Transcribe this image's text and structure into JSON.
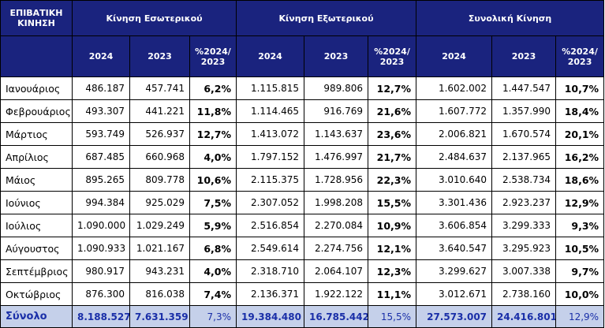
{
  "header": {
    "title": "ΕΠΙΒΑΤΙΚΗ ΚΙΝΗΣΗ",
    "groups": [
      "Κίνηση Εσωτερικού",
      "Κίνηση Εξωτερικού",
      "Συνολική Κίνηση"
    ],
    "year_2024": "2024",
    "year_2023": "2023",
    "pct_label": "%2024/ 2023"
  },
  "rows": [
    {
      "month": "Ιανουάριος",
      "dom_2024": "486.187",
      "dom_2023": "457.741",
      "dom_pct": "6,2%",
      "int_2024": "1.115.815",
      "int_2023": "989.806",
      "int_pct": "12,7%",
      "tot_2024": "1.602.002",
      "tot_2023": "1.447.547",
      "tot_pct": "10,7%"
    },
    {
      "month": "Φεβρουάριος",
      "dom_2024": "493.307",
      "dom_2023": "441.221",
      "dom_pct": "11,8%",
      "int_2024": "1.114.465",
      "int_2023": "916.769",
      "int_pct": "21,6%",
      "tot_2024": "1.607.772",
      "tot_2023": "1.357.990",
      "tot_pct": "18,4%"
    },
    {
      "month": "Μάρτιος",
      "dom_2024": "593.749",
      "dom_2023": "526.937",
      "dom_pct": "12,7%",
      "int_2024": "1.413.072",
      "int_2023": "1.143.637",
      "int_pct": "23,6%",
      "tot_2024": "2.006.821",
      "tot_2023": "1.670.574",
      "tot_pct": "20,1%"
    },
    {
      "month": "Απρίλιος",
      "dom_2024": "687.485",
      "dom_2023": "660.968",
      "dom_pct": "4,0%",
      "int_2024": "1.797.152",
      "int_2023": "1.476.997",
      "int_pct": "21,7%",
      "tot_2024": "2.484.637",
      "tot_2023": "2.137.965",
      "tot_pct": "16,2%"
    },
    {
      "month": "Μάιος",
      "dom_2024": "895.265",
      "dom_2023": "809.778",
      "dom_pct": "10,6%",
      "int_2024": "2.115.375",
      "int_2023": "1.728.956",
      "int_pct": "22,3%",
      "tot_2024": "3.010.640",
      "tot_2023": "2.538.734",
      "tot_pct": "18,6%"
    },
    {
      "month": "Ιούνιος",
      "dom_2024": "994.384",
      "dom_2023": "925.029",
      "dom_pct": "7,5%",
      "int_2024": "2.307.052",
      "int_2023": "1.998.208",
      "int_pct": "15,5%",
      "tot_2024": "3.301.436",
      "tot_2023": "2.923.237",
      "tot_pct": "12,9%"
    },
    {
      "month": "Ιούλιος",
      "dom_2024": "1.090.000",
      "dom_2023": "1.029.249",
      "dom_pct": "5,9%",
      "int_2024": "2.516.854",
      "int_2023": "2.270.084",
      "int_pct": "10,9%",
      "tot_2024": "3.606.854",
      "tot_2023": "3.299.333",
      "tot_pct": "9,3%"
    },
    {
      "month": "Αύγουστος",
      "dom_2024": "1.090.933",
      "dom_2023": "1.021.167",
      "dom_pct": "6,8%",
      "int_2024": "2.549.614",
      "int_2023": "2.274.756",
      "int_pct": "12,1%",
      "tot_2024": "3.640.547",
      "tot_2023": "3.295.923",
      "tot_pct": "10,5%"
    },
    {
      "month": "Σεπτέμβριος",
      "dom_2024": "980.917",
      "dom_2023": "943.231",
      "dom_pct": "4,0%",
      "int_2024": "2.318.710",
      "int_2023": "2.064.107",
      "int_pct": "12,3%",
      "tot_2024": "3.299.627",
      "tot_2023": "3.007.338",
      "tot_pct": "9,7%"
    },
    {
      "month": "Οκτώβριος",
      "dom_2024": "876.300",
      "dom_2023": "816.038",
      "dom_pct": "7,4%",
      "int_2024": "2.136.371",
      "int_2023": "1.922.122",
      "int_pct": "11,1%",
      "tot_2024": "3.012.671",
      "tot_2023": "2.738.160",
      "tot_pct": "10,0%"
    }
  ],
  "total": {
    "month": "Σύνολο",
    "dom_2024": "8.188.527",
    "dom_2023": "7.631.359",
    "dom_pct": "7,3%",
    "int_2024": "19.384.480",
    "int_2023": "16.785.442",
    "int_pct": "15,5%",
    "tot_2024": "27.573.007",
    "tot_2023": "24.416.801",
    "tot_pct": "12,9%"
  },
  "colors": {
    "header_bg": "#1a237e",
    "header_text": "#ffffff",
    "total_bg": "#c5d0ea",
    "total_text": "#1a2fa8"
  }
}
